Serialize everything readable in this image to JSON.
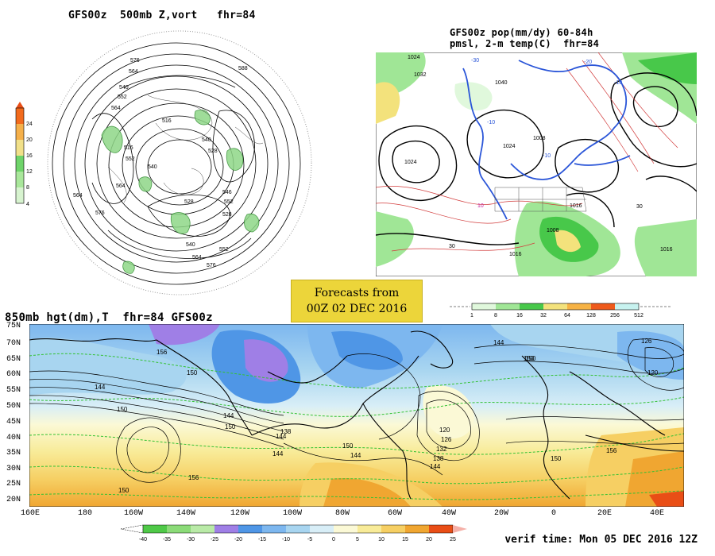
{
  "panel_500mb": {
    "title": "GFS00z  500mb Z,vort   fhr=84",
    "labels": [
      "576",
      "564",
      "540",
      "552",
      "564",
      "516",
      "588",
      "540",
      "528",
      "516",
      "552",
      "564",
      "540",
      "528",
      "546",
      "552",
      "528",
      "564",
      "576",
      "540",
      "552",
      "564",
      "576"
    ],
    "colorbar_ticks": [
      "24",
      "20",
      "16",
      "12",
      "8",
      "4"
    ],
    "colorbar_colors": [
      "#f26b1d",
      "#f5b04a",
      "#f1e089",
      "#6fd46a",
      "#a9e79b",
      "#d7f3cf"
    ]
  },
  "panel_pop": {
    "title_line1": "GFS00z pop(mm/dy) 60-84h",
    "title_line2": "pmsl, 2-m temp(C)  fhr=84",
    "colorbar_ticks": [
      "1",
      "8",
      "16",
      "32",
      "64",
      "128",
      "256",
      "512"
    ],
    "colorbar_colors": [
      "#e0f8dc",
      "#a0e696",
      "#48c84a",
      "#f3e27c",
      "#f6b244",
      "#ef5a1b",
      "#c7f2ef"
    ],
    "labels": [
      "1024",
      "1032",
      "1024",
      "1040",
      "1008",
      "1024",
      "1016",
      "1008",
      "1016",
      "1016",
      "-10",
      "10",
      "-20",
      "-30",
      "-10",
      "-10",
      "30",
      "30"
    ]
  },
  "badge": {
    "line1": "Forecasts from",
    "line2": "00Z 02 DEC 2016"
  },
  "panel_850mb": {
    "title": "850mb hgt(dm),T  fhr=84 GFS00z",
    "lat_labels": [
      "75N",
      "70N",
      "65N",
      "60N",
      "55N",
      "50N",
      "45N",
      "40N",
      "35N",
      "30N",
      "25N",
      "20N"
    ],
    "lon_labels": [
      "160E",
      "180",
      "160W",
      "140W",
      "120W",
      "100W",
      "80W",
      "60W",
      "40W",
      "20W",
      "0",
      "20E",
      "40E"
    ],
    "contour_labels": [
      "156",
      "144",
      "150",
      "150",
      "144",
      "150",
      "156",
      "150",
      "144",
      "150",
      "138",
      "144",
      "150",
      "144",
      "150",
      "120",
      "126",
      "132",
      "138",
      "144",
      "150",
      "156",
      "120",
      "144",
      "126"
    ],
    "colorbar_ticks": [
      "-40",
      "-35",
      "-30",
      "-25",
      "-20",
      "-15",
      "-10",
      "-5",
      "0",
      "5",
      "10",
      "15",
      "20",
      "25"
    ],
    "colorbar_colors": [
      "#4fc948",
      "#8bdb78",
      "#b9eaa7",
      "#9f7fe6",
      "#4f96e6",
      "#7db7ef",
      "#a8d5f0",
      "#d8eef7",
      "#fbf9d6",
      "#f8eb98",
      "#f6cf63",
      "#f0a631",
      "#e94e16"
    ]
  },
  "verif_time": "verif time: Mon 05 DEC 2016 12Z"
}
